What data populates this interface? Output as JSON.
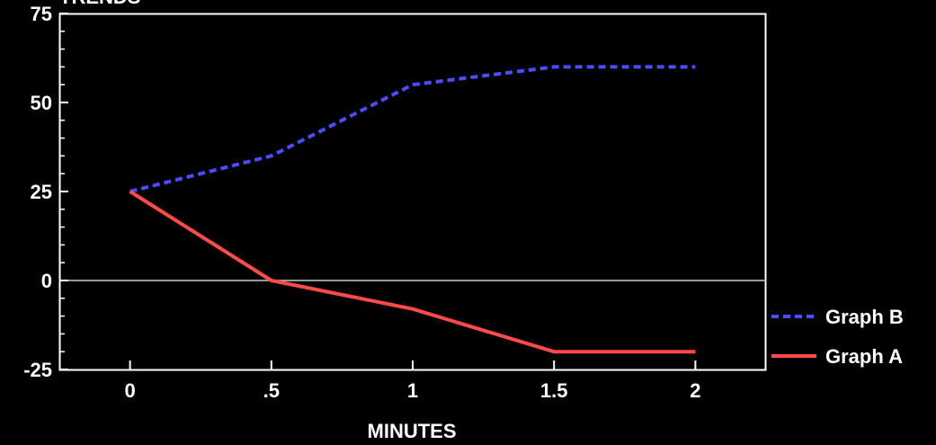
{
  "chart_data": {
    "type": "line",
    "title": "TRENDS",
    "xlabel": "MINUTES",
    "ylabel": "",
    "x": [
      0,
      0.5,
      1,
      1.5,
      2
    ],
    "x_tick_labels": [
      "0",
      ".5",
      "1",
      "1.5",
      "2"
    ],
    "y_tick_labels": [
      "75",
      "50",
      "25",
      "0",
      "-25"
    ],
    "xlim": [
      -0.25,
      2.25
    ],
    "ylim": [
      -25,
      75
    ],
    "grid": false,
    "zero_line": true,
    "legend_position": "right",
    "series": [
      {
        "name": "Graph B",
        "values": [
          25,
          35,
          55,
          60,
          60
        ],
        "color": "#4b4bff",
        "style": "dashed"
      },
      {
        "name": "Graph A",
        "values": [
          25,
          0,
          -8,
          -20,
          -20
        ],
        "color": "#ff4a4a",
        "style": "solid"
      }
    ],
    "colors": {
      "background": "#000000",
      "axes": "#ffffff",
      "zero_line": "#cccccc"
    }
  }
}
